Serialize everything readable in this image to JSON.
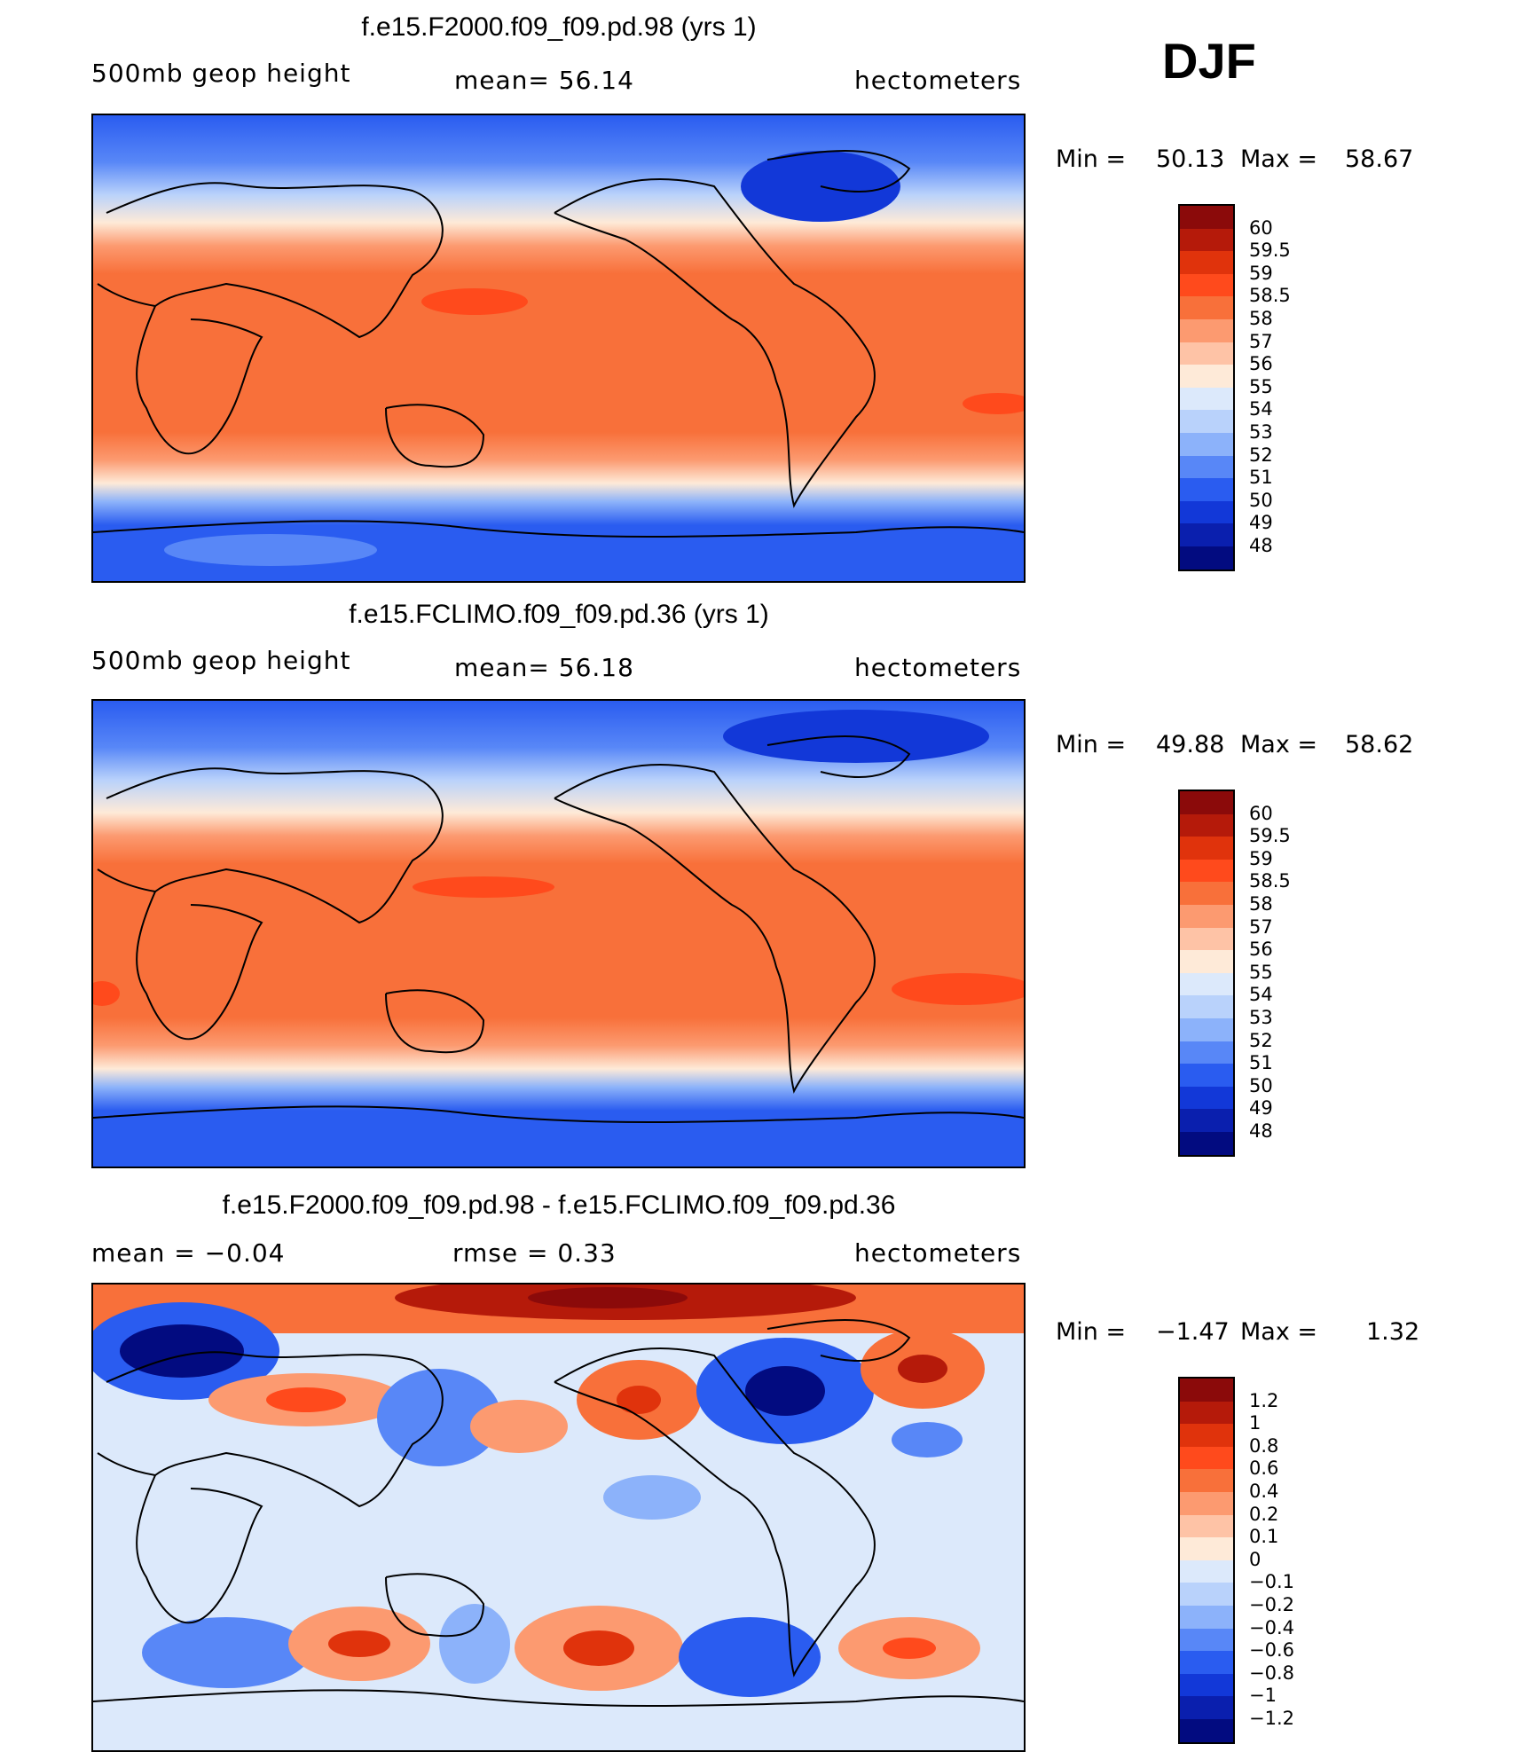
{
  "season": "DJF",
  "panels": [
    {
      "title": "f.e15.F2000.f09_f09.pd.98 (yrs 1)",
      "left_label": "500mb geop height",
      "center_label": "mean=   56.14",
      "right_label": "hectometers",
      "min_label": "Min =",
      "min_value": "50.13",
      "max_label": "Max =",
      "max_value": "58.67"
    },
    {
      "title": "f.e15.FCLIMO.f09_f09.pd.36 (yrs 1)",
      "left_label": "500mb geop height",
      "center_label": "mean=   56.18",
      "right_label": "hectometers",
      "min_label": "Min =",
      "min_value": "49.88",
      "max_label": "Max =",
      "max_value": "58.62"
    },
    {
      "title": "f.e15.F2000.f09_f09.pd.98 - f.e15.FCLIMO.f09_f09.pd.36",
      "left_label": "mean =   −0.04",
      "center_label": "rmse =    0.33",
      "right_label": "hectometers",
      "min_label": "Min =",
      "min_value": "−1.47",
      "max_label": "Max =",
      "max_value": "1.32"
    }
  ],
  "colorbars": [
    {
      "labels": [
        "60",
        "59.5",
        "59",
        "58.5",
        "58",
        "57",
        "56",
        "55",
        "54",
        "53",
        "52",
        "51",
        "50",
        "49",
        "48"
      ],
      "colors": [
        "#8b0a0a",
        "#b51a0a",
        "#e0330c",
        "#ff4a1c",
        "#f8703a",
        "#fc9a70",
        "#fec3a6",
        "#feead8",
        "#dce9fb",
        "#b9d2fb",
        "#8cb2fa",
        "#5887f7",
        "#2a5cf0",
        "#1238d8",
        "#0a1fae",
        "#020b80"
      ]
    },
    {
      "labels": [
        "60",
        "59.5",
        "59",
        "58.5",
        "58",
        "57",
        "56",
        "55",
        "54",
        "53",
        "52",
        "51",
        "50",
        "49",
        "48"
      ],
      "colors": [
        "#8b0a0a",
        "#b51a0a",
        "#e0330c",
        "#ff4a1c",
        "#f8703a",
        "#fc9a70",
        "#fec3a6",
        "#feead8",
        "#dce9fb",
        "#b9d2fb",
        "#8cb2fa",
        "#5887f7",
        "#2a5cf0",
        "#1238d8",
        "#0a1fae",
        "#020b80"
      ]
    },
    {
      "labels": [
        "1.2",
        "1",
        "0.8",
        "0.6",
        "0.4",
        "0.2",
        "0.1",
        "0",
        "−0.1",
        "−0.2",
        "−0.4",
        "−0.6",
        "−0.8",
        "−1",
        "−1.2"
      ],
      "colors": [
        "#8b0a0a",
        "#b51a0a",
        "#e0330c",
        "#ff4a1c",
        "#f8703a",
        "#fc9a70",
        "#fec3a6",
        "#feead8",
        "#dce9fb",
        "#b9d2fb",
        "#8cb2fa",
        "#5887f7",
        "#2a5cf0",
        "#1238d8",
        "#0a1fae",
        "#020b80"
      ]
    }
  ]
}
